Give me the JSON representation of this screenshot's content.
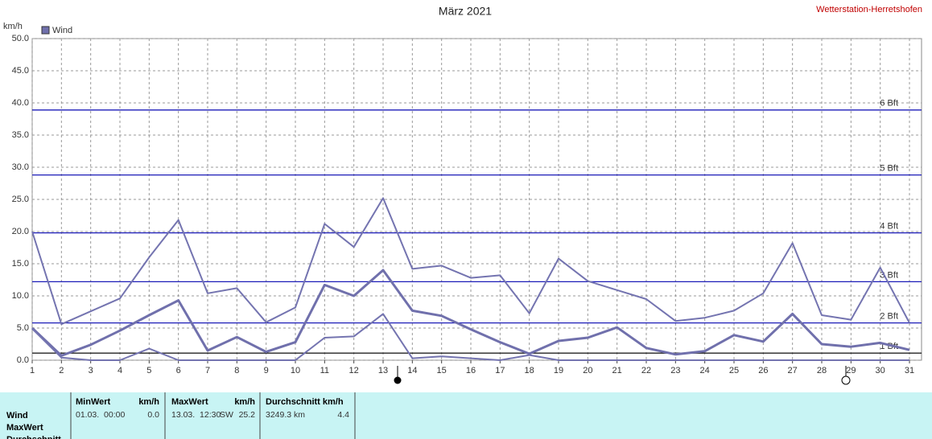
{
  "chart_data": {
    "type": "line",
    "title": "März 2021",
    "source": "Wetterstation-Herretshofen",
    "y_label": "km/h",
    "legend_label": "Wind",
    "x": [
      1,
      2,
      3,
      4,
      5,
      6,
      7,
      8,
      9,
      10,
      11,
      12,
      13,
      14,
      15,
      16,
      17,
      18,
      19,
      20,
      21,
      22,
      23,
      24,
      25,
      26,
      27,
      28,
      29,
      30,
      31
    ],
    "xlim": [
      1,
      31
    ],
    "xticks": [
      1,
      2,
      3,
      4,
      5,
      6,
      7,
      8,
      9,
      10,
      11,
      12,
      13,
      14,
      15,
      16,
      17,
      18,
      19,
      20,
      21,
      22,
      23,
      24,
      25,
      26,
      27,
      28,
      29,
      30,
      31
    ],
    "ylim": [
      0,
      50
    ],
    "yticks": [
      {
        "value": 0,
        "label": "0.0"
      },
      {
        "value": 5,
        "label": "5.0"
      },
      {
        "value": 10,
        "label": "10.0"
      },
      {
        "value": 15,
        "label": "15.0"
      },
      {
        "value": 20,
        "label": "20.0"
      },
      {
        "value": 25,
        "label": "25.0"
      },
      {
        "value": 30,
        "label": "30.0"
      },
      {
        "value": 35,
        "label": "35.0"
      },
      {
        "value": 40,
        "label": "40.0"
      },
      {
        "value": 45,
        "label": "45.0"
      },
      {
        "value": 50,
        "label": "50.0"
      }
    ],
    "grid": true,
    "reference_color": "#1c1cb8",
    "reference_lines": [
      {
        "value": 1.1,
        "label": "1 Bft"
      },
      {
        "value": 5.8,
        "label": "2 Bft"
      },
      {
        "value": 12.2,
        "label": "3 Bft"
      },
      {
        "value": 19.8,
        "label": "4 Bft"
      },
      {
        "value": 28.8,
        "label": "5 Bft"
      },
      {
        "value": 38.9,
        "label": "6 Bft"
      }
    ],
    "series": [
      {
        "color": "#7474b0",
        "width": 2,
        "values": [
          20.0,
          5.6,
          7.6,
          9.6,
          16.0,
          21.8,
          10.4,
          11.2,
          5.9,
          8.2,
          21.2,
          17.6,
          25.2,
          14.2,
          14.7,
          12.8,
          13.2,
          7.3,
          15.8,
          12.3,
          10.9,
          9.5,
          6.1,
          6.6,
          7.7,
          10.4,
          18.2,
          7.0,
          6.3,
          14.4,
          5.8
        ]
      },
      {
        "color": "#7070ac",
        "width": 3,
        "values": [
          5.0,
          0.7,
          2.4,
          4.6,
          7.0,
          9.3,
          1.5,
          3.6,
          1.3,
          2.8,
          11.7,
          10.0,
          14.0,
          7.7,
          6.9,
          4.8,
          2.8,
          1.0,
          3.0,
          3.5,
          5.1,
          1.9,
          0.9,
          1.4,
          3.9,
          2.9,
          7.2,
          2.5,
          2.1,
          2.7,
          1.6
        ]
      },
      {
        "color": "#7474b0",
        "width": 2,
        "values": [
          4.9,
          0.4,
          0.0,
          0.0,
          1.8,
          0.0,
          0.0,
          0.0,
          0.0,
          0.0,
          3.5,
          3.7,
          7.2,
          0.3,
          0.6,
          0.3,
          0.0,
          0.8,
          0.0,
          0.0,
          0.0,
          0.0,
          0.0,
          0.0,
          0.0,
          0.0,
          0.0,
          0.0,
          0.0,
          0.0,
          0.0
        ]
      }
    ]
  },
  "table": {
    "row_labels": [
      "Wind",
      "MaxWert",
      "Durchschnitt"
    ],
    "headers": [
      "MinWert",
      "km/h",
      "MaxWert",
      "km/h",
      "Durchschnitt km/h"
    ],
    "cells": [
      "01.03.  00:00",
      "0.0",
      "13.03.  12:30",
      "SW",
      "25.2",
      "3249.3 km",
      "4.4"
    ]
  }
}
